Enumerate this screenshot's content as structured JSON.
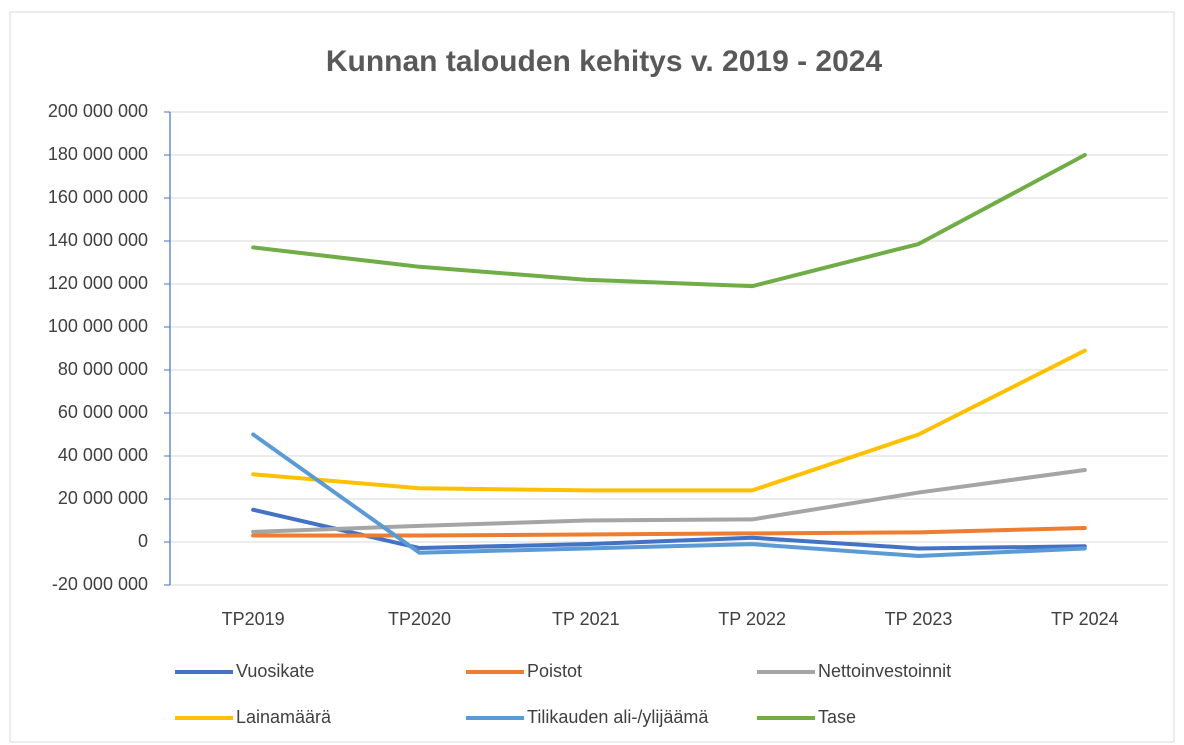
{
  "chart_data": {
    "type": "line",
    "title": "Kunnan talouden kehitys v. 2019 - 2024",
    "categories": [
      "TP2019",
      "TP2020",
      "TP 2021",
      "TP 2022",
      "TP 2023",
      "TP 2024"
    ],
    "series": [
      {
        "name": "Vuosikate",
        "color": "#4472c4",
        "values": [
          15000000,
          -2800000,
          -1000000,
          2000000,
          -3000000,
          -2000000
        ]
      },
      {
        "name": "Poistot",
        "color": "#ed7d31",
        "values": [
          3000000,
          3000000,
          3500000,
          4000000,
          4500000,
          6500000
        ]
      },
      {
        "name": "Nettoinvestoinnit",
        "color": "#a5a5a5",
        "values": [
          4700000,
          7500000,
          10000000,
          10500000,
          23000000,
          33500000
        ]
      },
      {
        "name": "Lainamäärä",
        "color": "#ffc000",
        "values": [
          31500000,
          25000000,
          24000000,
          24000000,
          50000000,
          89000000
        ]
      },
      {
        "name": "Tilikauden ali-/ylijäämä",
        "color": "#5b9bd5",
        "values": [
          50000000,
          -5000000,
          -3000000,
          -1000000,
          -6500000,
          -3000000
        ]
      },
      {
        "name": "Tase",
        "color": "#70ad47",
        "values": [
          137000000,
          128000000,
          122000000,
          119000000,
          138600000,
          180000000
        ]
      }
    ],
    "ylim": [
      -20000000,
      200000000
    ],
    "yticks": [
      {
        "value": -20000000,
        "label": "-20 000 000"
      },
      0,
      {
        "value": 20000000,
        "label": "20 000 000"
      },
      {
        "value": 40000000,
        "label": "40 000 000"
      },
      {
        "value": 60000000,
        "label": "60 000 000"
      },
      {
        "value": 80000000,
        "label": "80 000 000"
      },
      {
        "value": 100000000,
        "label": "100 000 000"
      },
      {
        "value": 120000000,
        "label": "120 000 000"
      },
      {
        "value": 140000000,
        "label": "140 000 000"
      },
      {
        "value": 160000000,
        "label": "160 000 000"
      },
      {
        "value": 180000000,
        "label": "180 000 000"
      },
      {
        "value": 200000000,
        "label": "200 000 000"
      }
    ],
    "grid": true,
    "legend": "bottom"
  }
}
